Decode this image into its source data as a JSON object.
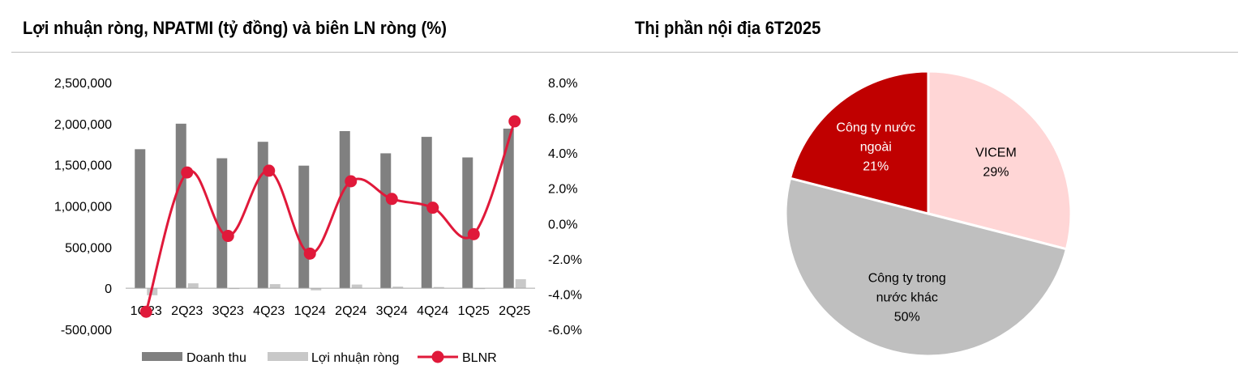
{
  "titles": {
    "left": "Lợi nhuận ròng, NPATMI (tỷ đồng) và biên LN ròng (%)",
    "right": "Thị phần nội địa 6T2025"
  },
  "chart_data": [
    {
      "type": "bar",
      "categories": [
        "1Q23",
        "2Q23",
        "3Q23",
        "4Q23",
        "1Q24",
        "2Q24",
        "3Q24",
        "4Q24",
        "1Q25",
        "2Q25"
      ],
      "series": [
        {
          "name": "Doanh thu",
          "type": "bar",
          "axis": "left",
          "color": "#808080",
          "values": [
            1690000,
            2000000,
            1580000,
            1780000,
            1490000,
            1910000,
            1640000,
            1840000,
            1590000,
            1940000
          ]
        },
        {
          "name": "Lợi nhuận ròng",
          "type": "bar",
          "axis": "left",
          "color": "#c8c8c8",
          "values": [
            -85000,
            60000,
            -5000,
            50000,
            -25000,
            45000,
            20000,
            15000,
            -10000,
            110000
          ]
        },
        {
          "name": "BLNR",
          "type": "line",
          "axis": "right",
          "color": "#e0193a",
          "values": [
            -5.0,
            2.9,
            -0.7,
            3.0,
            -1.7,
            2.4,
            1.4,
            0.9,
            -0.6,
            5.8
          ]
        }
      ],
      "y_left": {
        "min": -500000,
        "max": 2500000,
        "ticks": [
          "2,500,000",
          "2,000,000",
          "1,500,000",
          "1,000,000",
          "500,000",
          "0",
          "-500,000"
        ]
      },
      "y_right": {
        "min": -6,
        "max": 8,
        "ticks": [
          "8.0%",
          "6.0%",
          "4.0%",
          "2.0%",
          "0.0%",
          "-2.0%",
          "-4.0%",
          "-6.0%"
        ]
      },
      "legend": [
        "Doanh thu",
        "Lợi nhuận ròng",
        "BLNR"
      ],
      "legend_position": "bottom",
      "grid": false
    },
    {
      "type": "pie",
      "slices": [
        {
          "label": [
            "VICEM"
          ],
          "percent": "29%",
          "value": 29,
          "color": "#ffd6d6",
          "text_color": "#000000"
        },
        {
          "label": [
            "Công ty trong",
            "nước khác"
          ],
          "percent": "50%",
          "value": 50,
          "color": "#bfbfbf",
          "text_color": "#000000"
        },
        {
          "label": [
            "Công ty nước",
            "ngoài"
          ],
          "percent": "21%",
          "value": 21,
          "color": "#c00000",
          "text_color": "#ffffff"
        }
      ]
    }
  ]
}
